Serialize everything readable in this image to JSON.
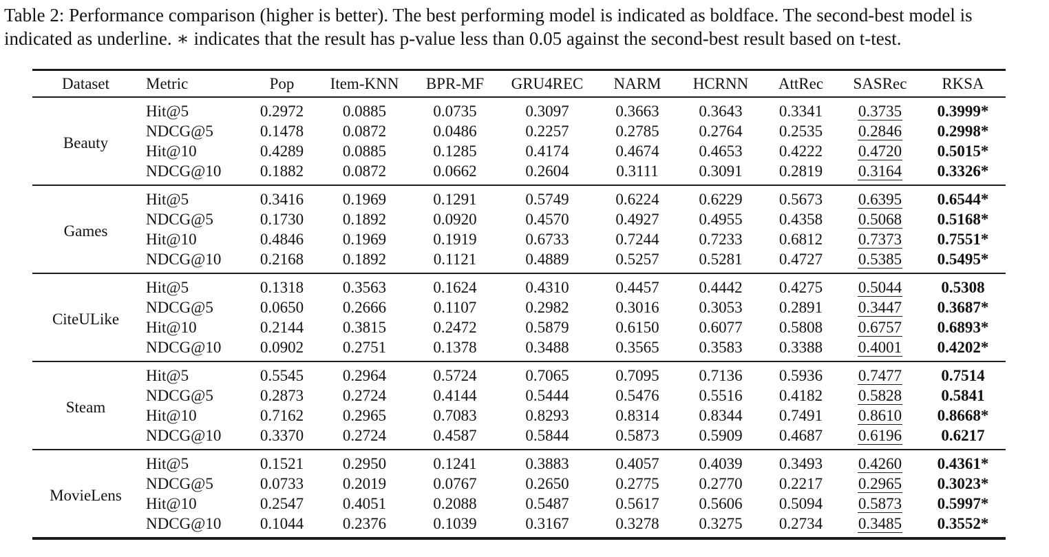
{
  "caption": "Table 2: Performance comparison (higher is better). The best performing model is indicated as boldface. The second-best model is indicated as underline. ∗ indicates that the result has p-value less than 0.05 against the second-best result based on t-test.",
  "table": {
    "columns": [
      "Dataset",
      "Metric",
      "Pop",
      "Item-KNN",
      "BPR-MF",
      "GRU4REC",
      "NARM",
      "HCRNN",
      "AttRec",
      "SASRec",
      "RKSA"
    ],
    "emphasis": {
      "underline_value_index": 7,
      "bold_value_index": 8
    },
    "groups": [
      {
        "dataset": "Beauty",
        "rows": [
          {
            "metric": "Hit@5",
            "values": [
              "0.2972",
              "0.0885",
              "0.0735",
              "0.3097",
              "0.3663",
              "0.3643",
              "0.3341",
              "0.3735",
              "0.3999*"
            ]
          },
          {
            "metric": "NDCG@5",
            "values": [
              "0.1478",
              "0.0872",
              "0.0486",
              "0.2257",
              "0.2785",
              "0.2764",
              "0.2535",
              "0.2846",
              "0.2998*"
            ]
          },
          {
            "metric": "Hit@10",
            "values": [
              "0.4289",
              "0.0885",
              "0.1285",
              "0.4174",
              "0.4674",
              "0.4653",
              "0.4222",
              "0.4720",
              "0.5015*"
            ]
          },
          {
            "metric": "NDCG@10",
            "values": [
              "0.1882",
              "0.0872",
              "0.0662",
              "0.2604",
              "0.3111",
              "0.3091",
              "0.2819",
              "0.3164",
              "0.3326*"
            ]
          }
        ]
      },
      {
        "dataset": "Games",
        "rows": [
          {
            "metric": "Hit@5",
            "values": [
              "0.3416",
              "0.1969",
              "0.1291",
              "0.5749",
              "0.6224",
              "0.6229",
              "0.5673",
              "0.6395",
              "0.6544*"
            ]
          },
          {
            "metric": "NDCG@5",
            "values": [
              "0.1730",
              "0.1892",
              "0.0920",
              "0.4570",
              "0.4927",
              "0.4955",
              "0.4358",
              "0.5068",
              "0.5168*"
            ]
          },
          {
            "metric": "Hit@10",
            "values": [
              "0.4846",
              "0.1969",
              "0.1919",
              "0.6733",
              "0.7244",
              "0.7233",
              "0.6812",
              "0.7373",
              "0.7551*"
            ]
          },
          {
            "metric": "NDCG@10",
            "values": [
              "0.2168",
              "0.1892",
              "0.1121",
              "0.4889",
              "0.5257",
              "0.5281",
              "0.4727",
              "0.5385",
              "0.5495*"
            ]
          }
        ]
      },
      {
        "dataset": "CiteULike",
        "rows": [
          {
            "metric": "Hit@5",
            "values": [
              "0.1318",
              "0.3563",
              "0.1624",
              "0.4310",
              "0.4457",
              "0.4442",
              "0.4275",
              "0.5044",
              "0.5308"
            ]
          },
          {
            "metric": "NDCG@5",
            "values": [
              "0.0650",
              "0.2666",
              "0.1107",
              "0.2982",
              "0.3016",
              "0.3053",
              "0.2891",
              "0.3447",
              "0.3687*"
            ]
          },
          {
            "metric": "Hit@10",
            "values": [
              "0.2144",
              "0.3815",
              "0.2472",
              "0.5879",
              "0.6150",
              "0.6077",
              "0.5808",
              "0.6757",
              "0.6893*"
            ]
          },
          {
            "metric": "NDCG@10",
            "values": [
              "0.0902",
              "0.2751",
              "0.1378",
              "0.3488",
              "0.3565",
              "0.3583",
              "0.3388",
              "0.4001",
              "0.4202*"
            ]
          }
        ]
      },
      {
        "dataset": "Steam",
        "rows": [
          {
            "metric": "Hit@5",
            "values": [
              "0.5545",
              "0.2964",
              "0.5724",
              "0.7065",
              "0.7095",
              "0.7136",
              "0.5936",
              "0.7477",
              "0.7514"
            ]
          },
          {
            "metric": "NDCG@5",
            "values": [
              "0.2873",
              "0.2724",
              "0.4144",
              "0.5444",
              "0.5476",
              "0.5516",
              "0.4182",
              "0.5828",
              "0.5841"
            ]
          },
          {
            "metric": "Hit@10",
            "values": [
              "0.7162",
              "0.2965",
              "0.7083",
              "0.8293",
              "0.8314",
              "0.8344",
              "0.7491",
              "0.8610",
              "0.8668*"
            ]
          },
          {
            "metric": "NDCG@10",
            "values": [
              "0.3370",
              "0.2724",
              "0.4587",
              "0.5844",
              "0.5873",
              "0.5909",
              "0.4687",
              "0.6196",
              "0.6217"
            ]
          }
        ]
      },
      {
        "dataset": "MovieLens",
        "rows": [
          {
            "metric": "Hit@5",
            "values": [
              "0.1521",
              "0.2950",
              "0.1241",
              "0.3883",
              "0.4057",
              "0.4039",
              "0.3493",
              "0.4260",
              "0.4361*"
            ]
          },
          {
            "metric": "NDCG@5",
            "values": [
              "0.0733",
              "0.2019",
              "0.0767",
              "0.2650",
              "0.2775",
              "0.2770",
              "0.2217",
              "0.2965",
              "0.3023*"
            ]
          },
          {
            "metric": "Hit@10",
            "values": [
              "0.2547",
              "0.4051",
              "0.2088",
              "0.5487",
              "0.5617",
              "0.5606",
              "0.5094",
              "0.5873",
              "0.5997*"
            ]
          },
          {
            "metric": "NDCG@10",
            "values": [
              "0.1044",
              "0.2376",
              "0.1039",
              "0.3167",
              "0.3278",
              "0.3275",
              "0.2734",
              "0.3485",
              "0.3552*"
            ]
          }
        ]
      }
    ]
  }
}
